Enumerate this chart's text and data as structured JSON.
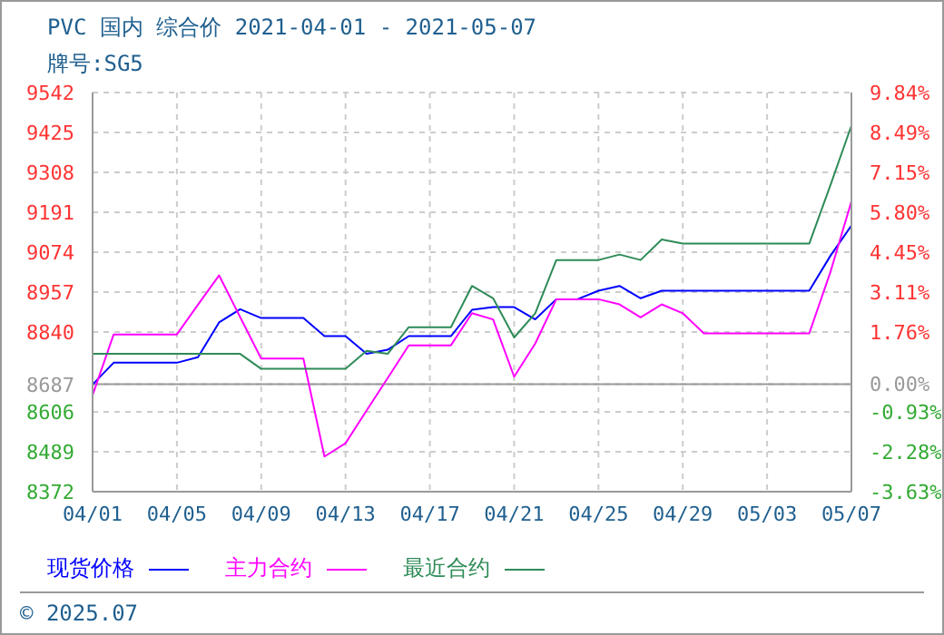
{
  "chart_data": {
    "type": "line",
    "title": "PVC 国内 综合价 2021-04-01 - 2021-05-07",
    "subtitle": "牌号:SG5",
    "categories": [
      "04/01",
      null,
      null,
      null,
      "04/05",
      null,
      null,
      null,
      "04/09",
      null,
      null,
      null,
      "04/13",
      null,
      null,
      null,
      "04/17",
      null,
      null,
      null,
      "04/21",
      null,
      null,
      null,
      "04/25",
      null,
      null,
      null,
      "04/29",
      null,
      null,
      null,
      "05/03",
      null,
      null,
      null,
      "05/07"
    ],
    "series": [
      {
        "name": "现货价格",
        "color": "#0000ff",
        "values": [
          8686,
          8750,
          8750,
          8750,
          8750,
          8766,
          8868,
          8907,
          8881,
          8881,
          8881,
          8828,
          8828,
          8776,
          8788,
          8828,
          8828,
          8828,
          8905,
          8913,
          8913,
          8877,
          8936,
          8936,
          8961,
          8975,
          8939,
          8961,
          8961,
          8961,
          8961,
          8961,
          8961,
          8961,
          8961,
          9063,
          9152
        ]
      },
      {
        "name": "主力合约",
        "color": "#ff00ff",
        "values": [
          8655,
          8833,
          8833,
          8833,
          8833,
          8920,
          9006,
          8884,
          8762,
          8762,
          8762,
          8475,
          8514,
          8610,
          8705,
          8801,
          8801,
          8801,
          8895,
          8877,
          8709,
          8806,
          8936,
          8936,
          8936,
          8921,
          8883,
          8921,
          8895,
          8836,
          8836,
          8836,
          8836,
          8836,
          8836,
          9015,
          9223
        ]
      },
      {
        "name": "最近合约",
        "color": "#2e8b57",
        "values": [
          8776,
          8776,
          8776,
          8776,
          8776,
          8776,
          8776,
          8776,
          8732,
          8732,
          8732,
          8732,
          8732,
          8785,
          8776,
          8854,
          8854,
          8854,
          8975,
          8939,
          8824,
          8895,
          9051,
          9051,
          9051,
          9067,
          9051,
          9111,
          9099,
          9099,
          9099,
          9099,
          9099,
          9099,
          9099,
          9270,
          9445
        ]
      }
    ],
    "ylim": [
      8372,
      9542
    ],
    "yticks": [
      8372,
      8489,
      8606,
      8687,
      8840,
      8957,
      9074,
      9191,
      9308,
      9425,
      9542
    ],
    "y2lim": [
      -3.63,
      9.84
    ],
    "y2ticks": [
      {
        "value": -3.63,
        "label": "-3.63%"
      },
      {
        "value": -2.28,
        "label": "-2.28%"
      },
      {
        "value": -0.93,
        "label": "-0.93%"
      },
      {
        "value": 0,
        "label": "0.00%"
      },
      {
        "value": 1.76,
        "label": "1.76%"
      },
      {
        "value": 3.11,
        "label": "3.11%"
      },
      {
        "value": 4.45,
        "label": "4.45%"
      },
      {
        "value": 5.8,
        "label": "5.80%"
      },
      {
        "value": 7.15,
        "label": "7.15%"
      },
      {
        "value": 8.49,
        "label": "8.49%"
      },
      {
        "value": 9.84,
        "label": "9.84%"
      }
    ],
    "ref_lines": [
      {
        "axis": "y",
        "value": 8687,
        "color": "#999999"
      }
    ],
    "grid": true,
    "legend": "bottom",
    "annotations": [
      "© 2025.07"
    ]
  }
}
